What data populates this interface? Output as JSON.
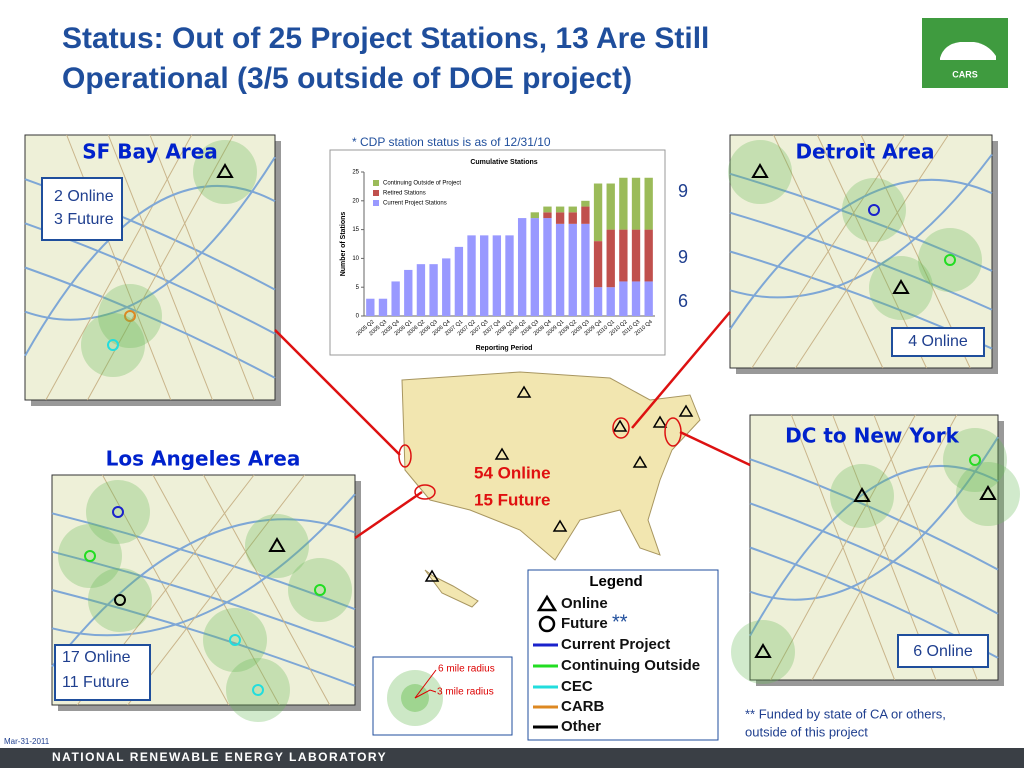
{
  "title": [
    "Status: Out of 25 Project Stations, 13 Are Still",
    "Operational (3/5 outside of DOE project)"
  ],
  "logo": "CARS",
  "note": "* CDP station status is as of 12/31/10",
  "regions": [
    {
      "name": "SF Bay Area",
      "status": [
        "2 Online",
        "3 Future"
      ]
    },
    {
      "name": "Detroit Area",
      "status": [
        "4 Online"
      ]
    },
    {
      "name": "Los Angeles Area",
      "status": [
        "17 Online",
        "11 Future"
      ]
    },
    {
      "name": "DC to New York",
      "status": [
        "6 Online"
      ]
    }
  ],
  "us_total": [
    "54 Online",
    "15 Future"
  ],
  "side_labels": [
    9,
    9,
    6
  ],
  "chart_data": {
    "type": "bar",
    "stacked": true,
    "title": "Cumulative Stations",
    "x_label": "Reporting Period",
    "y_label": "Number of Stations",
    "categories": [
      "2005 Q2",
      "2005 Q3",
      "2005 Q4",
      "2006 Q1",
      "2006 Q2",
      "2006 Q3",
      "2006 Q4",
      "2007 Q1",
      "2007 Q2",
      "2007 Q3",
      "2007 Q4",
      "2008 Q1",
      "2008 Q2",
      "2008 Q3",
      "2008 Q4",
      "2009 Q1",
      "2009 Q2",
      "2009 Q3",
      "2009 Q4",
      "2010 Q1",
      "2010 Q2",
      "2010 Q3",
      "2010 Q4"
    ],
    "series": [
      {
        "name": "Current Project Stations",
        "color": "#9999ff",
        "values": [
          3,
          3,
          6,
          8,
          9,
          9,
          10,
          12,
          14,
          14,
          14,
          14,
          17,
          17,
          17,
          16,
          16,
          16,
          5,
          5,
          6,
          6,
          6
        ]
      },
      {
        "name": "Retired Stations",
        "color": "#c0504d",
        "values": [
          0,
          0,
          0,
          0,
          0,
          0,
          0,
          0,
          0,
          0,
          0,
          0,
          0,
          0,
          1,
          2,
          2,
          3,
          8,
          10,
          9,
          9,
          9
        ]
      },
      {
        "name": "Continuing Outside of Project",
        "color": "#9bbb59",
        "values": [
          0,
          0,
          0,
          0,
          0,
          0,
          0,
          0,
          0,
          0,
          0,
          0,
          0,
          1,
          1,
          1,
          1,
          1,
          10,
          8,
          9,
          9,
          9
        ]
      }
    ],
    "ylim": [
      0,
      25
    ],
    "yticks": [
      0,
      5,
      10,
      15,
      20,
      25
    ]
  },
  "legend": {
    "title": "Legend",
    "items": [
      "Online",
      "Future",
      "Current Project",
      "Continuing Outside",
      "CEC",
      "CARB",
      "Other"
    ],
    "future_mark": "**"
  },
  "radius": [
    "6 mile radius",
    "3 mile radius"
  ],
  "footnote": [
    "** Funded by state of CA or others,",
    "outside of this project"
  ],
  "date": "Mar-31-2011",
  "footer": "NATIONAL RENEWABLE ENERGY LABORATORY"
}
